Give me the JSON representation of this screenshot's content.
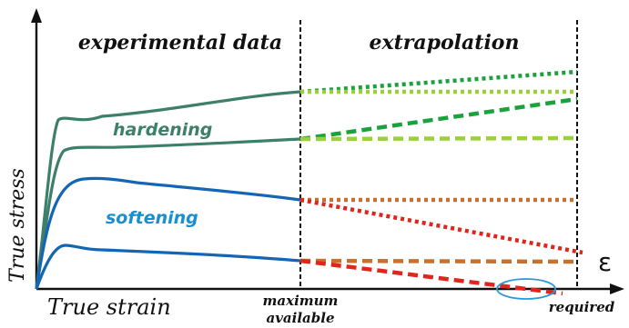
{
  "labels": {
    "experimental_data": "experimental data",
    "extrapolation": "extrapolation",
    "hardening": "hardening",
    "softening": "softening",
    "y_axis": "True stress",
    "x_axis": "True strain",
    "epsilon": "ε",
    "maximum_line1": "maximum",
    "maximum_line2": "available",
    "required": "required"
  },
  "colors": {
    "hardening_curve": "#3d7f6a",
    "softening_curve": "#1565b5",
    "hardening_text": "#3d7f6a",
    "softening_text": "#1a8fd0",
    "green_dark": "#1aa23c",
    "green_light": "#9bcf3c",
    "orange": "#c8702e",
    "red": "#e0261c",
    "ellipse": "#2a9ad8",
    "axis": "#111111"
  }
}
